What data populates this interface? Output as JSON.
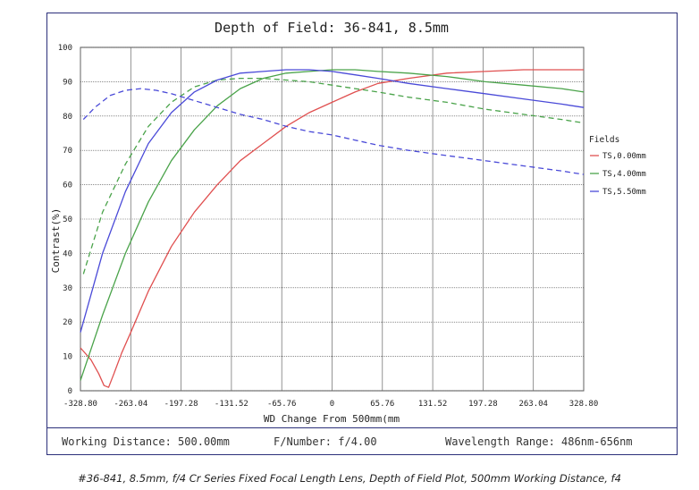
{
  "caption": "#36-841, 8.5mm, f/4 Cr Series Fixed Focal Length Lens, Depth of Field Plot, 500mm Working Distance, f4",
  "footer": {
    "working_distance": "Working Distance: 500.00mm",
    "f_number": "F/Number: f/4.00",
    "wavelength": "Wavelength Range: 486nm-656nm"
  },
  "chart_data": {
    "type": "line",
    "title": "Depth of Field: 36-841, 8.5mm",
    "xlabel": "WD Change From 500mm(mm",
    "ylabel": "Contrast(%)",
    "xlim": [
      -328.8,
      328.8
    ],
    "ylim": [
      0,
      100
    ],
    "x_ticks": [
      "-328.80",
      "-263.04",
      "-197.28",
      "-131.52",
      "-65.76",
      "0",
      "65.76",
      "131.52",
      "197.28",
      "263.04",
      "328.80"
    ],
    "y_ticks": [
      "0",
      "10",
      "20",
      "30",
      "40",
      "50",
      "60",
      "70",
      "80",
      "90",
      "100"
    ],
    "grid": true,
    "legend_title": "Fields",
    "legend_position": "right",
    "series": [
      {
        "name": "TS,0.00mm",
        "color": "#e05050",
        "dashed": false,
        "x": [
          -328.8,
          -315,
          -305,
          -298,
          -292,
          -285,
          -275,
          -263,
          -240,
          -210,
          -180,
          -150,
          -120,
          -90,
          -60,
          -30,
          0,
          30,
          60,
          100,
          150,
          200,
          250,
          300,
          328.8
        ],
        "y": [
          12.5,
          9,
          5,
          1.5,
          1,
          5,
          11,
          17,
          29,
          42,
          52,
          60,
          67,
          72,
          77,
          81,
          84,
          87,
          89.5,
          91,
          92.5,
          93,
          93.5,
          93.5,
          93.5
        ]
      },
      {
        "name": "TS,4.00mm",
        "color": "#4aa34a",
        "dashed": false,
        "x": [
          -328.8,
          -300,
          -270,
          -240,
          -210,
          -180,
          -150,
          -120,
          -90,
          -60,
          -30,
          0,
          30,
          60,
          100,
          150,
          200,
          250,
          300,
          328.8
        ],
        "y": [
          3,
          22,
          40,
          55,
          67,
          76,
          83,
          88,
          91,
          92.5,
          93,
          93.5,
          93.5,
          93,
          92.5,
          91.5,
          90,
          89,
          88,
          87
        ]
      },
      {
        "name": "TS,4.00mm",
        "color": "#4aa34a",
        "dashed": true,
        "x": [
          -325,
          -300,
          -270,
          -240,
          -210,
          -180,
          -150,
          -120,
          -90,
          -60,
          -30,
          0,
          30,
          60,
          100,
          150,
          200,
          250,
          300,
          328.8
        ],
        "y": [
          34,
          52,
          66,
          77,
          84,
          88.5,
          90.5,
          91,
          91,
          90.5,
          90,
          89,
          88,
          87,
          85.5,
          84,
          82,
          80.5,
          79,
          78
        ]
      },
      {
        "name": "TS,5.50mm",
        "color": "#4a4ad8",
        "dashed": false,
        "x": [
          -328.8,
          -300,
          -270,
          -240,
          -210,
          -180,
          -150,
          -120,
          -90,
          -60,
          -30,
          0,
          30,
          60,
          100,
          150,
          200,
          250,
          300,
          328.8
        ],
        "y": [
          17,
          40,
          58,
          72,
          81,
          87,
          90.5,
          92.5,
          93,
          93.5,
          93.5,
          93,
          92,
          91,
          89.5,
          88,
          86.5,
          85,
          83.5,
          82.5
        ]
      },
      {
        "name": "TS,5.50mm",
        "color": "#4a4ad8",
        "dashed": true,
        "x": [
          -325,
          -310,
          -290,
          -270,
          -250,
          -230,
          -210,
          -180,
          -150,
          -120,
          -90,
          -60,
          -30,
          0,
          30,
          60,
          100,
          150,
          200,
          250,
          300,
          328.8
        ],
        "y": [
          79,
          82.5,
          86,
          87.5,
          88,
          87.5,
          86.5,
          84.5,
          82.5,
          80.5,
          79,
          77,
          75.5,
          74.5,
          73,
          71.5,
          70,
          68.5,
          67,
          65.5,
          64,
          63
        ]
      }
    ],
    "legend": [
      {
        "label": "TS,0.00mm",
        "color": "#e05050"
      },
      {
        "label": "TS,4.00mm",
        "color": "#4aa34a"
      },
      {
        "label": "TS,5.50mm",
        "color": "#4a4ad8"
      }
    ]
  }
}
